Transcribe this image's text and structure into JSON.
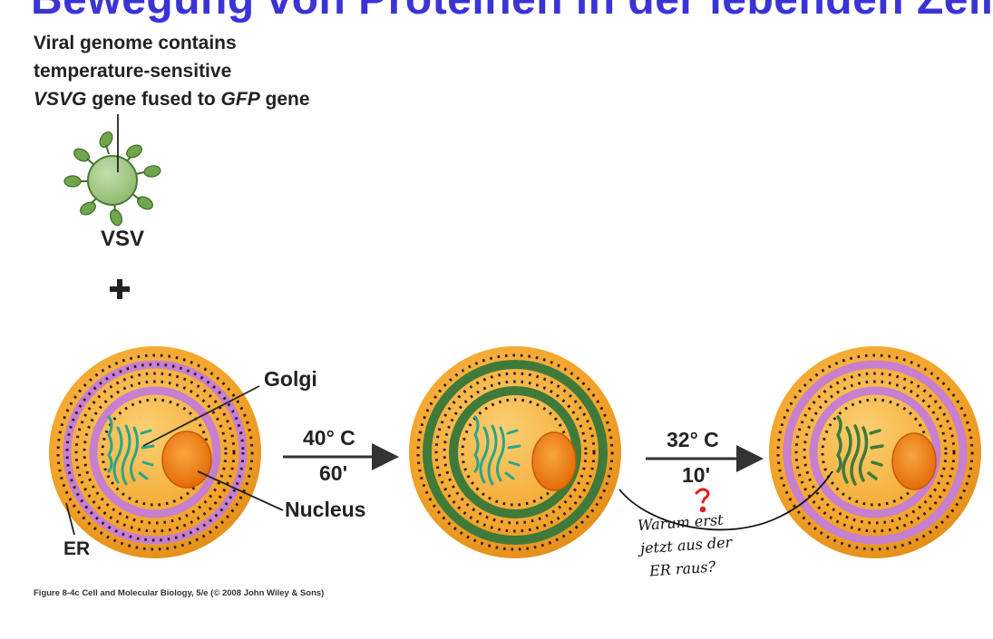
{
  "title": "Bewegung von Proteinen in der lebenden Zelle",
  "virus_caption": {
    "line1": "Viral genome contains",
    "line2": "temperature-sensitive",
    "line3_italic_a": "VSVG",
    "line3_mid": " gene  fused to ",
    "line3_italic_b": "GFP",
    "line3_end": " gene"
  },
  "virus_label": "VSV",
  "plus_sign": "+",
  "labels": {
    "golgi": "Golgi",
    "nucleus": "Nucleus",
    "er": "ER"
  },
  "step1": {
    "temp": "40° C",
    "time": "60'"
  },
  "step2": {
    "temp": "32° C",
    "time": "10'"
  },
  "handwriting": {
    "question_mark": "?",
    "note_line1": "Warum erst",
    "note_line2": "jetzt aus der",
    "note_line3": "ER raus?"
  },
  "credit": "Figure 8-4c  Cell and Molecular Biology, 5/e (© 2008 John Wiley & Sons)",
  "colors": {
    "title": "#3a34d6",
    "cell_fill": "#f3a42a",
    "er_membrane_nofluor": "#c77fcf",
    "er_membrane_gfp": "#3f7a3a",
    "golgi_cell1": "#33b89a",
    "golgi_gfp": "#3f7a3a",
    "nucleus": "#ee7a10",
    "virus": "#9cc57d",
    "question_mark": "#e0201a"
  }
}
